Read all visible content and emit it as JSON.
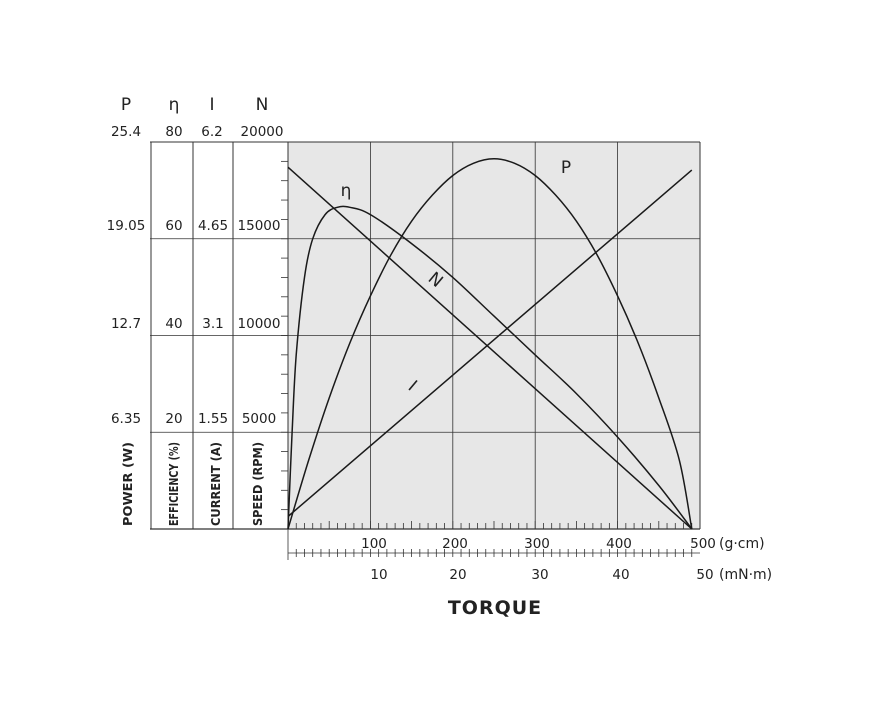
{
  "chart_data": {
    "type": "line",
    "title": "",
    "xlabel": "TORQUE",
    "x_axes": [
      {
        "unit": "(g·cm)",
        "ticks": [
          "100",
          "200",
          "300",
          "400",
          "500"
        ],
        "range": [
          0,
          500
        ]
      },
      {
        "unit": "(mN·m)",
        "ticks": [
          "10",
          "20",
          "30",
          "40",
          "50"
        ],
        "range": [
          0,
          50
        ]
      }
    ],
    "y_axes": [
      {
        "symbol": "P",
        "label": "POWER (W)",
        "ticks": [
          "25.4",
          "19.05",
          "12.7",
          "6.35"
        ],
        "range": [
          0,
          25.4
        ]
      },
      {
        "symbol": "η",
        "label": "EFFICIENCY (%)",
        "ticks": [
          "80",
          "60",
          "40",
          "20"
        ],
        "range": [
          0,
          80
        ]
      },
      {
        "symbol": "I",
        "label": "CURRENT (A)",
        "ticks": [
          "6.2",
          "4.65",
          "3.1",
          "1.55"
        ],
        "range": [
          0,
          6.2
        ]
      },
      {
        "symbol": "N",
        "label": "SPEED (RPM)",
        "ticks": [
          "20000",
          "15000",
          "10000",
          "5000"
        ],
        "range": [
          0,
          20000
        ]
      }
    ],
    "grid": true,
    "series": [
      {
        "name": "N",
        "axis": "N",
        "x": [
          0,
          490
        ],
        "values": [
          18700,
          0
        ]
      },
      {
        "name": "I",
        "axis": "I",
        "x": [
          0,
          490
        ],
        "values": [
          0.2,
          5.75
        ]
      },
      {
        "name": "P",
        "axis": "P",
        "x": [
          0,
          25,
          50,
          75,
          100,
          125,
          150,
          175,
          200,
          225,
          250,
          275,
          300,
          325,
          350,
          375,
          400,
          425,
          450,
          475,
          490
        ],
        "values": [
          0,
          4.5,
          8.6,
          12.2,
          15.3,
          18.0,
          20.2,
          21.9,
          23.2,
          24.0,
          24.3,
          24.0,
          23.2,
          21.9,
          20.2,
          18.0,
          15.3,
          12.2,
          8.6,
          4.5,
          0
        ]
      },
      {
        "name": "η",
        "axis": "η",
        "x": [
          0,
          5,
          10,
          20,
          30,
          45,
          60,
          75,
          100,
          150,
          200,
          250,
          300,
          350,
          400,
          450,
          490
        ],
        "values": [
          0,
          20,
          36,
          52,
          60,
          65,
          66.5,
          66.5,
          65,
          59,
          52,
          44,
          36,
          28,
          19,
          9,
          0
        ]
      }
    ],
    "curve_labels": {
      "eta": "η",
      "p": "P",
      "n": "N",
      "i": "I"
    }
  }
}
